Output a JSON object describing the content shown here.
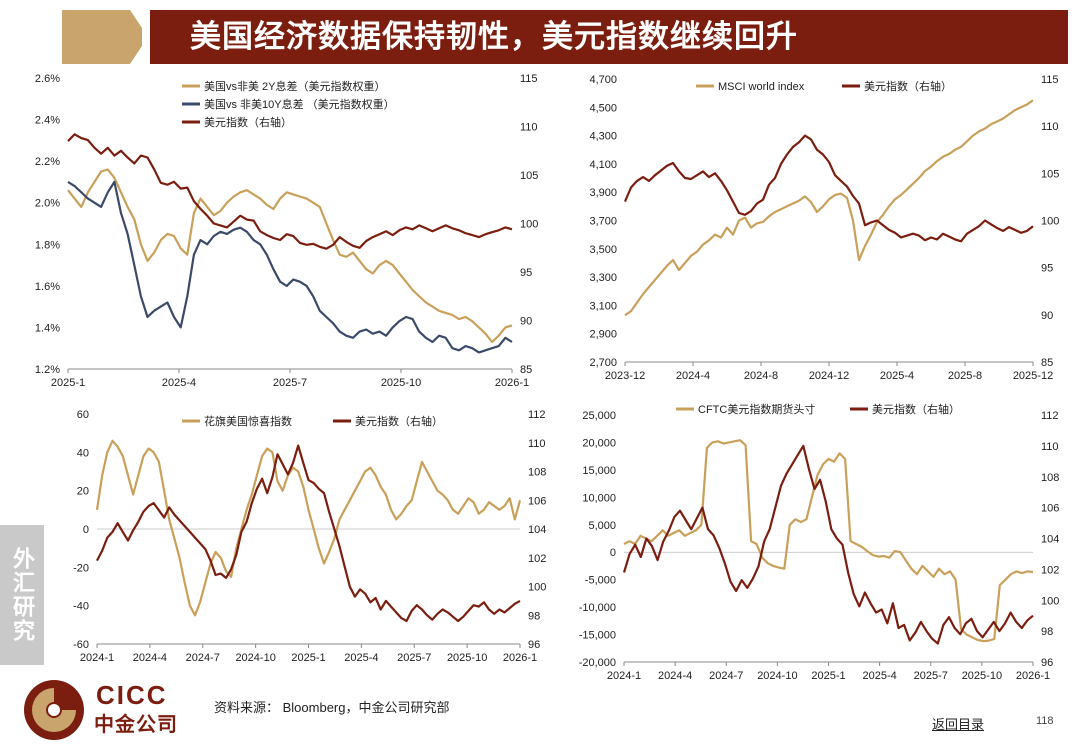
{
  "header": {
    "title": "美国经济数据保持韧性，美元指数继续回升"
  },
  "sidebar": {
    "label": "外汇研究"
  },
  "footer": {
    "logo_en": "CICC",
    "logo_cn": "中金公司",
    "source": "资料来源： Bloomberg，中金公司研究部",
    "back_link": "返回目录",
    "page_number": "118"
  },
  "colors": {
    "tan": "#c9a05a",
    "maroon": "#7b1e0f",
    "navy": "#3b4a6b",
    "header": "#7b1e0f"
  },
  "chart_data": [
    {
      "type": "line",
      "title": "",
      "x_ticks": [
        "2025-1",
        "2025-4",
        "2025-7",
        "2025-10",
        "2026-1"
      ],
      "y_left": {
        "ticks": [
          "1.2%",
          "1.4%",
          "1.6%",
          "1.8%",
          "2.0%",
          "2.2%",
          "2.4%",
          "2.6%"
        ],
        "range": [
          1.2,
          2.6
        ]
      },
      "y_right": {
        "ticks": [
          "85",
          "90",
          "95",
          "100",
          "105",
          "110",
          "115"
        ],
        "range": [
          85,
          115
        ]
      },
      "series": [
        {
          "name": "美国vs非美 2Y息差（美元指数权重）",
          "axis": "left",
          "color": "tan",
          "values": [
            2.06,
            2.02,
            1.98,
            2.05,
            2.1,
            2.15,
            2.16,
            2.12,
            2.05,
            1.98,
            1.92,
            1.8,
            1.72,
            1.76,
            1.82,
            1.85,
            1.84,
            1.78,
            1.75,
            1.95,
            2.02,
            1.98,
            1.94,
            1.96,
            2.0,
            2.03,
            2.05,
            2.06,
            2.04,
            2.02,
            1.99,
            1.97,
            2.02,
            2.05,
            2.04,
            2.03,
            2.02,
            2.0,
            1.98,
            1.9,
            1.82,
            1.75,
            1.74,
            1.76,
            1.72,
            1.68,
            1.66,
            1.7,
            1.72,
            1.7,
            1.66,
            1.62,
            1.58,
            1.55,
            1.52,
            1.5,
            1.48,
            1.47,
            1.46,
            1.44,
            1.45,
            1.43,
            1.4,
            1.37,
            1.33,
            1.36,
            1.4,
            1.41
          ]
        },
        {
          "name": "美国vs 非美10Y息差 （美元指数权重）",
          "axis": "left",
          "color": "navy",
          "values": [
            2.1,
            2.08,
            2.05,
            2.02,
            2.0,
            1.98,
            2.05,
            2.1,
            1.95,
            1.85,
            1.7,
            1.55,
            1.45,
            1.48,
            1.5,
            1.52,
            1.45,
            1.4,
            1.55,
            1.75,
            1.82,
            1.8,
            1.84,
            1.86,
            1.85,
            1.87,
            1.88,
            1.86,
            1.82,
            1.8,
            1.75,
            1.68,
            1.62,
            1.6,
            1.63,
            1.62,
            1.6,
            1.55,
            1.48,
            1.45,
            1.42,
            1.38,
            1.36,
            1.35,
            1.38,
            1.39,
            1.37,
            1.38,
            1.36,
            1.4,
            1.43,
            1.45,
            1.44,
            1.38,
            1.35,
            1.33,
            1.36,
            1.35,
            1.3,
            1.29,
            1.31,
            1.3,
            1.28,
            1.29,
            1.3,
            1.31,
            1.35,
            1.33
          ]
        },
        {
          "name": "美元指数（右轴）",
          "axis": "right",
          "color": "maroon",
          "values": [
            108.5,
            109.2,
            108.8,
            108.6,
            107.8,
            107.2,
            107.8,
            107.0,
            107.5,
            106.8,
            106.2,
            107.0,
            106.8,
            105.6,
            104.2,
            104.0,
            104.3,
            103.6,
            103.7,
            102.3,
            101.5,
            100.8,
            100.0,
            99.8,
            99.6,
            100.2,
            100.8,
            100.4,
            100.3,
            99.2,
            98.8,
            98.5,
            98.3,
            98.9,
            98.7,
            98.0,
            97.8,
            97.9,
            97.6,
            97.4,
            97.8,
            98.6,
            98.1,
            97.7,
            97.5,
            98.2,
            98.6,
            98.9,
            99.2,
            98.8,
            99.3,
            99.6,
            99.4,
            99.8,
            99.5,
            99.2,
            99.5,
            99.8,
            99.5,
            99.3,
            99.0,
            98.8,
            98.6,
            98.9,
            99.1,
            99.3,
            99.6,
            99.4
          ]
        }
      ]
    },
    {
      "type": "line",
      "title": "",
      "x_ticks": [
        "2023-12",
        "2024-4",
        "2024-8",
        "2024-12",
        "2025-4",
        "2025-8",
        "2025-12"
      ],
      "y_left": {
        "ticks": [
          "2,700",
          "2,900",
          "3,100",
          "3,300",
          "3,500",
          "3,700",
          "3,900",
          "4,100",
          "4,300",
          "4,500",
          "4,700"
        ],
        "range": [
          2700,
          4700
        ]
      },
      "y_right": {
        "ticks": [
          "85",
          "90",
          "95",
          "100",
          "105",
          "110",
          "115"
        ],
        "range": [
          85,
          115
        ]
      },
      "series": [
        {
          "name": "MSCI world index",
          "axis": "left",
          "color": "tan",
          "values": [
            3030,
            3060,
            3120,
            3180,
            3230,
            3280,
            3330,
            3380,
            3420,
            3350,
            3400,
            3450,
            3480,
            3530,
            3560,
            3600,
            3580,
            3650,
            3600,
            3700,
            3720,
            3650,
            3680,
            3690,
            3730,
            3760,
            3780,
            3800,
            3820,
            3840,
            3870,
            3830,
            3760,
            3800,
            3850,
            3880,
            3890,
            3860,
            3700,
            3420,
            3520,
            3600,
            3690,
            3740,
            3800,
            3850,
            3880,
            3920,
            3960,
            4000,
            4050,
            4080,
            4120,
            4150,
            4170,
            4200,
            4220,
            4260,
            4300,
            4330,
            4350,
            4380,
            4400,
            4420,
            4450,
            4480,
            4500,
            4520,
            4550
          ]
        },
        {
          "name": "美元指数（右轴）",
          "axis": "right",
          "color": "maroon",
          "values": [
            102.0,
            103.5,
            104.2,
            104.6,
            104.2,
            104.8,
            105.3,
            105.8,
            106.1,
            105.2,
            104.5,
            104.4,
            104.8,
            105.2,
            104.6,
            105.0,
            104.2,
            103.2,
            102.0,
            100.8,
            100.6,
            101.0,
            101.8,
            102.2,
            103.8,
            104.5,
            106.0,
            107.0,
            107.8,
            108.3,
            109.0,
            108.6,
            107.5,
            107.0,
            106.2,
            104.8,
            104.2,
            103.6,
            102.6,
            101.8,
            99.5,
            99.8,
            100.0,
            99.5,
            99.0,
            98.7,
            98.2,
            98.4,
            98.6,
            98.4,
            97.9,
            98.2,
            98.0,
            98.6,
            98.3,
            98.0,
            97.8,
            98.6,
            99.0,
            99.4,
            100.0,
            99.6,
            99.2,
            98.9,
            99.3,
            99.0,
            98.7,
            98.9,
            99.4
          ]
        }
      ]
    },
    {
      "type": "line",
      "title": "",
      "x_ticks": [
        "2024-1",
        "2024-4",
        "2024-7",
        "2024-10",
        "2025-1",
        "2025-4",
        "2025-7",
        "2025-10",
        "2026-1"
      ],
      "y_left": {
        "ticks": [
          "-60",
          "-40",
          "-20",
          "0",
          "20",
          "40",
          "60"
        ],
        "range": [
          -60,
          60
        ]
      },
      "y_right": {
        "ticks": [
          "96",
          "98",
          "100",
          "102",
          "104",
          "106",
          "108",
          "110",
          "112"
        ],
        "range": [
          96,
          112
        ]
      },
      "series": [
        {
          "name": "花旗美国惊喜指数",
          "axis": "left",
          "color": "tan",
          "values": [
            10,
            28,
            40,
            46,
            43,
            38,
            28,
            18,
            28,
            38,
            42,
            40,
            35,
            20,
            5,
            -5,
            -15,
            -28,
            -40,
            -45,
            -38,
            -28,
            -18,
            -12,
            -15,
            -22,
            -25,
            -10,
            0,
            10,
            18,
            28,
            38,
            42,
            40,
            25,
            20,
            28,
            32,
            30,
            22,
            10,
            0,
            -10,
            -18,
            -12,
            -5,
            5,
            10,
            15,
            20,
            25,
            30,
            32,
            28,
            22,
            18,
            10,
            5,
            8,
            12,
            15,
            25,
            35,
            30,
            25,
            20,
            18,
            15,
            10,
            8,
            12,
            16,
            14,
            8,
            10,
            14,
            12,
            10,
            12,
            16,
            5,
            15
          ]
        },
        {
          "name": "美元指数（右轴）",
          "axis": "right",
          "color": "maroon",
          "values": [
            101.8,
            102.5,
            103.4,
            103.8,
            104.4,
            103.8,
            103.2,
            103.9,
            104.5,
            105.2,
            105.6,
            105.8,
            105.3,
            104.8,
            105.5,
            105.0,
            104.6,
            104.2,
            103.8,
            103.4,
            103.0,
            102.6,
            101.8,
            100.8,
            100.9,
            100.6,
            101.2,
            102.2,
            103.8,
            104.5,
            105.8,
            106.8,
            107.5,
            106.5,
            107.6,
            109.2,
            108.5,
            107.8,
            108.6,
            109.8,
            108.6,
            107.4,
            107.2,
            106.8,
            106.5,
            105.2,
            104.0,
            102.8,
            101.4,
            100.0,
            99.3,
            99.8,
            99.5,
            98.9,
            99.2,
            98.4,
            99.0,
            98.6,
            98.2,
            97.8,
            97.6,
            98.3,
            98.7,
            98.4,
            98.0,
            97.7,
            98.1,
            98.4,
            98.2,
            97.9,
            97.6,
            97.9,
            98.3,
            98.7,
            98.6,
            98.9,
            98.4,
            98.1,
            98.4,
            98.2,
            98.5,
            98.8,
            99.0
          ]
        }
      ]
    },
    {
      "type": "line",
      "title": "",
      "x_ticks": [
        "2024-1",
        "2024-4",
        "2024-7",
        "2024-10",
        "2025-1",
        "2025-4",
        "2025-7",
        "2025-10",
        "2026-1"
      ],
      "y_left": {
        "ticks": [
          "-20,000",
          "-15,000",
          "-10,000",
          "-5,000",
          "0",
          "5,000",
          "10,000",
          "15,000",
          "20,000",
          "25,000"
        ],
        "range": [
          -20000,
          25000
        ]
      },
      "y_right": {
        "ticks": [
          "96",
          "98",
          "100",
          "102",
          "104",
          "106",
          "108",
          "110",
          "112"
        ],
        "range": [
          96,
          112
        ]
      },
      "series": [
        {
          "name": "CFTC美元指数期货头寸",
          "axis": "left",
          "color": "tan",
          "values": [
            1500,
            2000,
            1500,
            3000,
            2500,
            2000,
            3000,
            4000,
            3000,
            3500,
            4000,
            3000,
            3500,
            4000,
            5000,
            19000,
            20000,
            20200,
            19800,
            20000,
            20200,
            20400,
            19500,
            2000,
            1500,
            -1000,
            -2000,
            -2500,
            -2800,
            -3000,
            5000,
            6000,
            5500,
            6000,
            10000,
            14000,
            16000,
            17000,
            16500,
            18000,
            17000,
            2000,
            1500,
            1000,
            200,
            -500,
            -800,
            -700,
            -1000,
            200,
            0,
            -1500,
            -3000,
            -4000,
            -2500,
            -3500,
            -4500,
            -3000,
            -4000,
            -3500,
            -5000,
            -14000,
            -15000,
            -15500,
            -16000,
            -16200,
            -16100,
            -15800,
            -6000,
            -5000,
            -4000,
            -3500,
            -3800,
            -3500,
            -3600
          ]
        },
        {
          "name": "美元指数（右轴）",
          "axis": "right",
          "color": "maroon",
          "values": [
            101.8,
            103.0,
            103.6,
            102.8,
            104.0,
            103.5,
            102.6,
            103.8,
            104.5,
            105.4,
            105.8,
            105.2,
            104.6,
            105.3,
            106.0,
            104.6,
            104.2,
            103.4,
            102.4,
            101.2,
            100.6,
            101.3,
            100.8,
            101.4,
            102.2,
            103.8,
            104.6,
            106.0,
            107.4,
            108.2,
            108.8,
            109.4,
            110.0,
            108.5,
            107.2,
            107.8,
            106.4,
            104.6,
            104.0,
            103.6,
            101.8,
            100.4,
            99.6,
            100.5,
            99.8,
            99.2,
            99.4,
            98.5,
            99.8,
            98.2,
            98.4,
            97.4,
            97.9,
            98.6,
            98.0,
            97.5,
            97.2,
            98.4,
            98.9,
            98.2,
            97.8,
            98.5,
            98.8,
            98.0,
            97.6,
            98.1,
            98.6,
            98.0,
            98.5,
            99.2,
            98.6,
            98.2,
            98.7,
            99.0
          ]
        }
      ]
    }
  ]
}
